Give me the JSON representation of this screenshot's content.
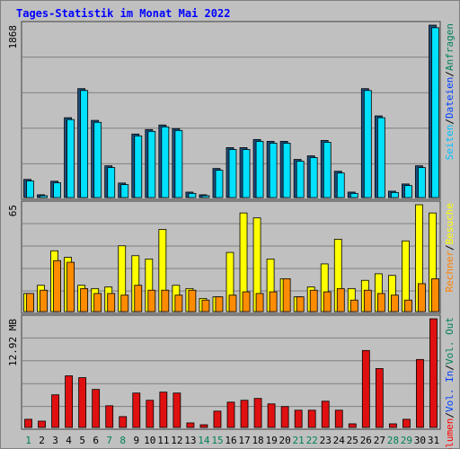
{
  "title": "Tages-Statistik im Monat Mai 2022",
  "legend_separator": "/",
  "chart_data": [
    {
      "type": "bar",
      "legend": [
        {
          "text": "Seiten",
          "color": "#00c0ff"
        },
        {
          "text": "Dateien",
          "color": "#0040ff"
        },
        {
          "text": "Anfragen",
          "color": "#00805c"
        }
      ],
      "ylim": [
        0,
        1868
      ],
      "yticks": [
        1868
      ],
      "series": [
        {
          "name": "Anfragen",
          "color": "#1c4f80",
          "values": [
            197,
            30,
            177,
            865,
            1180,
            836,
            344,
            157,
            688,
            737,
            786,
            747,
            59,
            30,
            315,
            541,
            541,
            629,
            609,
            609,
            413,
            452,
            619,
            285,
            59,
            1180,
            885,
            69,
            147,
            344,
            1868
          ]
        },
        {
          "name": "Seiten",
          "color": "#00e0ff",
          "values": [
            180,
            20,
            160,
            845,
            1160,
            815,
            325,
            140,
            668,
            717,
            766,
            727,
            45,
            20,
            296,
            521,
            521,
            609,
            589,
            589,
            394,
            433,
            599,
            266,
            45,
            1160,
            865,
            55,
            130,
            325,
            1840
          ]
        }
      ]
    },
    {
      "type": "bar",
      "legend": [
        {
          "text": "Rechner",
          "color": "#ff8000"
        },
        {
          "text": "Besuche",
          "color": "#ffff00"
        }
      ],
      "ylim": [
        0,
        65
      ],
      "yticks": [
        65
      ],
      "series": [
        {
          "name": "Besuche",
          "color": "#ffff00",
          "values": [
            11,
            16,
            37,
            33,
            16,
            14,
            15,
            40,
            34,
            32,
            50,
            16,
            14,
            8,
            9,
            36,
            60,
            57,
            32,
            20,
            9,
            15,
            29,
            44,
            14,
            19,
            23,
            22,
            43,
            65,
            60
          ]
        },
        {
          "name": "Rechner",
          "color": "#ff8c00",
          "values": [
            11,
            13,
            31,
            30,
            14,
            11,
            11,
            10,
            16,
            13,
            13,
            10,
            13,
            7,
            9,
            10,
            12,
            11,
            12,
            20,
            9,
            13,
            12,
            14,
            7,
            13,
            11,
            10,
            7,
            17,
            20
          ]
        }
      ]
    },
    {
      "type": "bar",
      "legend": [
        {
          "text": "Volumen",
          "color": "#ff0000"
        },
        {
          "text": "Vol. In",
          "color": "#0040ff"
        },
        {
          "text": "Vol. Out",
          "color": "#00805c"
        }
      ],
      "ylim": [
        0,
        12.92
      ],
      "yticks": [
        {
          "value": 12.92,
          "label": "12.92 MB"
        }
      ],
      "categories": [
        "1",
        "2",
        "3",
        "4",
        "5",
        "6",
        "7",
        "8",
        "9",
        "10",
        "11",
        "12",
        "13",
        "14",
        "15",
        "16",
        "17",
        "18",
        "19",
        "20",
        "21",
        "22",
        "23",
        "24",
        "25",
        "26",
        "27",
        "28",
        "29",
        "30",
        "31"
      ],
      "category_colors": [
        "#00805c",
        "#000000",
        "#000000",
        "#000000",
        "#000000",
        "#000000",
        "#00805c",
        "#00805c",
        "#000000",
        "#000000",
        "#000000",
        "#000000",
        "#000000",
        "#00805c",
        "#00805c",
        "#000000",
        "#000000",
        "#000000",
        "#000000",
        "#000000",
        "#00805c",
        "#00805c",
        "#000000",
        "#000000",
        "#000000",
        "#000000",
        "#000000",
        "#00805c",
        "#00805c",
        "#000000",
        "#000000"
      ],
      "series": [
        {
          "name": "Volumen",
          "color": "#e01010",
          "values": [
            0.97,
            0.75,
            3.88,
            6.14,
            5.92,
            4.52,
            2.58,
            1.29,
            4.09,
            3.23,
            4.2,
            4.09,
            0.54,
            0.32,
            1.94,
            3.01,
            3.23,
            3.45,
            2.8,
            2.48,
            2.05,
            2.05,
            3.12,
            2.05,
            0.43,
            9.15,
            7.0,
            0.43,
            0.97,
            8.08,
            12.92
          ]
        }
      ]
    }
  ]
}
